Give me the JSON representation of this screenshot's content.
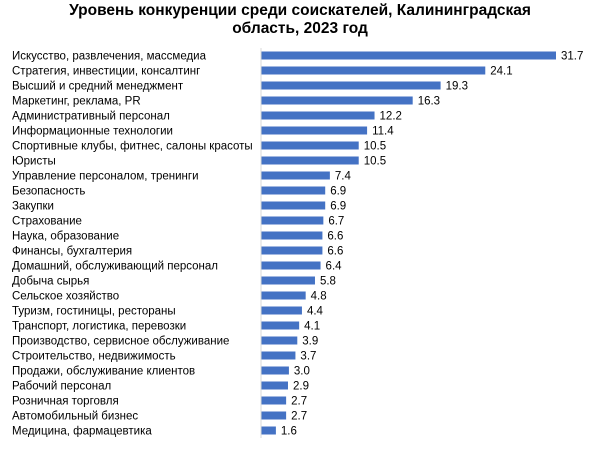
{
  "chart_data": {
    "type": "bar",
    "orientation": "horizontal",
    "title_line1": "Уровень конкуренции среди соискателей, Калининградская",
    "title_line2": "область, 2023 год",
    "categories": [
      "Искусство, развлечения, массмедиа",
      "Стратегия, инвестиции, консалтинг",
      "Высший и средний менеджмент",
      "Маркетинг, реклама, PR",
      "Административный персонал",
      "Информационные технологии",
      "Спортивные клубы, фитнес, салоны красоты",
      "Юристы",
      "Управление персоналом, тренинги",
      "Безопасность",
      "Закупки",
      "Страхование",
      "Наука, образование",
      "Финансы, бухгалтерия",
      "Домашний, обслуживающий персонал",
      "Добыча сырья",
      "Сельское хозяйство",
      "Туризм, гостиницы, рестораны",
      "Транспорт, логистика, перевозки",
      "Производство, сервисное обслуживание",
      "Строительство, недвижимость",
      "Продажи, обслуживание клиентов",
      "Рабочий персонал",
      "Розничная торговля",
      "Автомобильный бизнес",
      "Медицина, фармацевтика"
    ],
    "values": [
      31.7,
      24.1,
      19.3,
      16.3,
      12.2,
      11.4,
      10.5,
      10.5,
      7.4,
      6.9,
      6.9,
      6.7,
      6.6,
      6.6,
      6.4,
      5.8,
      4.8,
      4.4,
      4.1,
      3.9,
      3.7,
      3.0,
      2.9,
      2.7,
      2.7,
      1.6
    ],
    "value_labels": [
      "31.7",
      "24.1",
      "19.3",
      "16.3",
      "12.2",
      "11.4",
      "10.5",
      "10.5",
      "7.4",
      "6.9",
      "6.9",
      "6.7",
      "6.6",
      "6.6",
      "6.4",
      "5.8",
      "4.8",
      "4.4",
      "4.1",
      "3.9",
      "3.7",
      "3.0",
      "2.9",
      "2.7",
      "2.7",
      "1.6"
    ],
    "xlim": [
      0,
      31.7
    ],
    "xlabel": "",
    "ylabel": "",
    "grid": false,
    "legend": "none",
    "bar_color": "#4472c4",
    "axis_color": "#d9d9d9"
  }
}
